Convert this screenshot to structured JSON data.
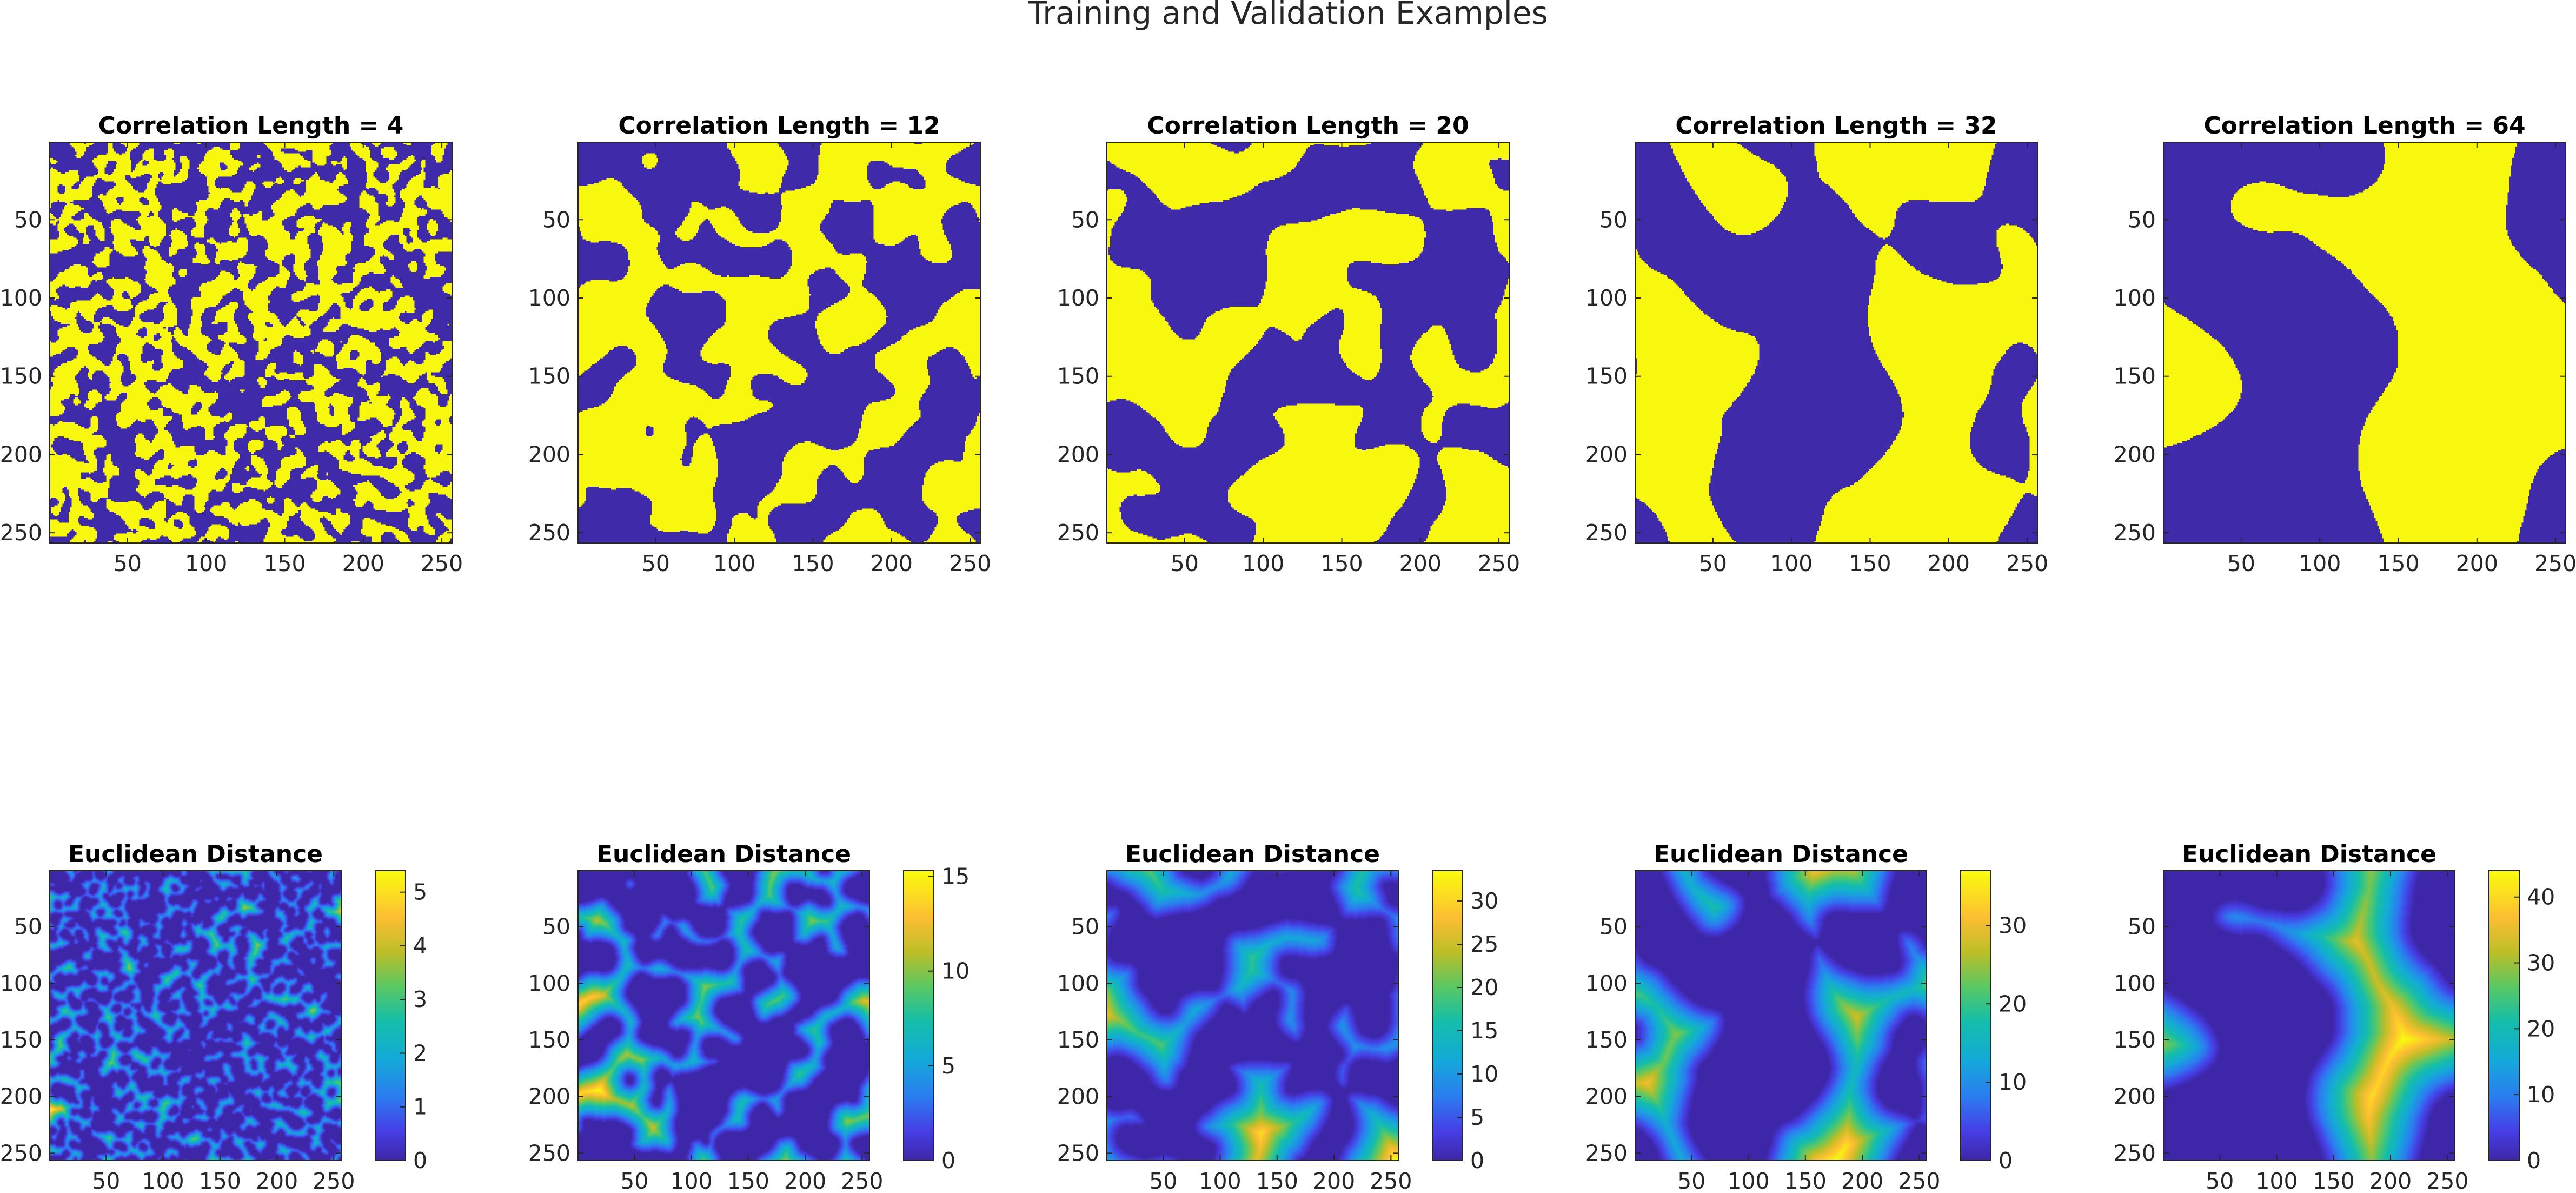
{
  "figure": {
    "title": "Training and Validation Examples"
  },
  "colors": {
    "binary_low": "#3f2aa9",
    "binary_high": "#f8f80f",
    "axis": "#262626"
  },
  "chart_data": [
    {
      "type": "heatmap",
      "title": "Correlation Length = 4",
      "correlation_length": 4,
      "values": [
        0,
        1
      ],
      "xlim": [
        0.5,
        256.5
      ],
      "ylim": [
        0.5,
        256.5
      ],
      "xticks": [
        "50",
        "100",
        "150",
        "200",
        "250"
      ],
      "yticks": [
        "50",
        "100",
        "150",
        "200",
        "250"
      ]
    },
    {
      "type": "heatmap",
      "title": "Correlation Length = 12",
      "correlation_length": 12,
      "values": [
        0,
        1
      ],
      "xlim": [
        0.5,
        256.5
      ],
      "ylim": [
        0.5,
        256.5
      ],
      "xticks": [
        "50",
        "100",
        "150",
        "200",
        "250"
      ],
      "yticks": [
        "50",
        "100",
        "150",
        "200",
        "250"
      ]
    },
    {
      "type": "heatmap",
      "title": "Correlation Length = 20",
      "correlation_length": 20,
      "values": [
        0,
        1
      ],
      "xlim": [
        0.5,
        256.5
      ],
      "ylim": [
        0.5,
        256.5
      ],
      "xticks": [
        "50",
        "100",
        "150",
        "200",
        "250"
      ],
      "yticks": [
        "50",
        "100",
        "150",
        "200",
        "250"
      ]
    },
    {
      "type": "heatmap",
      "title": "Correlation Length = 32",
      "correlation_length": 32,
      "values": [
        0,
        1
      ],
      "xlim": [
        0.5,
        256.5
      ],
      "ylim": [
        0.5,
        256.5
      ],
      "xticks": [
        "50",
        "100",
        "150",
        "200",
        "250"
      ],
      "yticks": [
        "50",
        "100",
        "150",
        "200",
        "250"
      ]
    },
    {
      "type": "heatmap",
      "title": "Correlation Length = 64",
      "correlation_length": 64,
      "values": [
        0,
        1
      ],
      "xlim": [
        0.5,
        256.5
      ],
      "ylim": [
        0.5,
        256.5
      ],
      "xticks": [
        "50",
        "100",
        "150",
        "200",
        "250"
      ],
      "yticks": [
        "50",
        "100",
        "150",
        "200",
        "250"
      ]
    },
    {
      "type": "heatmap",
      "title": "Euclidean Distance",
      "colorbar": {
        "min": 0,
        "max": 5.4,
        "ticks": [
          0,
          1,
          2,
          3,
          4,
          5
        ]
      },
      "xlim": [
        0.5,
        256.5
      ],
      "ylim": [
        0.5,
        256.5
      ],
      "xticks": [
        "50",
        "100",
        "150",
        "200",
        "250"
      ],
      "yticks": [
        "50",
        "100",
        "150",
        "200",
        "250"
      ]
    },
    {
      "type": "heatmap",
      "title": "Euclidean Distance",
      "colorbar": {
        "min": 0,
        "max": 15.3,
        "ticks": [
          0,
          5,
          10,
          15
        ]
      },
      "xlim": [
        0.5,
        256.5
      ],
      "ylim": [
        0.5,
        256.5
      ],
      "xticks": [
        "50",
        "100",
        "150",
        "200",
        "250"
      ],
      "yticks": [
        "50",
        "100",
        "150",
        "200",
        "250"
      ]
    },
    {
      "type": "heatmap",
      "title": "Euclidean Distance",
      "colorbar": {
        "min": 0,
        "max": 33.5,
        "ticks": [
          0,
          5,
          10,
          15,
          20,
          25,
          30
        ]
      },
      "xlim": [
        0.5,
        256.5
      ],
      "ylim": [
        0.5,
        256.5
      ],
      "xticks": [
        "50",
        "100",
        "150",
        "200",
        "250"
      ],
      "yticks": [
        "50",
        "100",
        "150",
        "200",
        "250"
      ]
    },
    {
      "type": "heatmap",
      "title": "Euclidean Distance",
      "colorbar": {
        "min": 0,
        "max": 37,
        "ticks": [
          0,
          10,
          20,
          30
        ]
      },
      "xlim": [
        0.5,
        256.5
      ],
      "ylim": [
        0.5,
        256.5
      ],
      "xticks": [
        "50",
        "100",
        "150",
        "200",
        "250"
      ],
      "yticks": [
        "50",
        "100",
        "150",
        "200",
        "250"
      ]
    },
    {
      "type": "heatmap",
      "title": "Euclidean Distance",
      "colorbar": {
        "min": 0,
        "max": 44,
        "ticks": [
          0,
          10,
          20,
          30,
          40
        ]
      },
      "xlim": [
        0.5,
        256.5
      ],
      "ylim": [
        0.5,
        256.5
      ],
      "xticks": [
        "50",
        "100",
        "150",
        "200",
        "250"
      ],
      "yticks": [
        "50",
        "100",
        "150",
        "200",
        "250"
      ]
    }
  ]
}
